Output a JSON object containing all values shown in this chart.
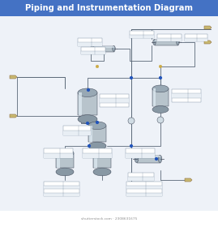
{
  "title": "Piping and Instrumentation Diagram",
  "title_bg": "#4472C4",
  "title_color": "#FFFFFF",
  "title_fontsize": 7.2,
  "bg_color": "#FFFFFF",
  "diagram_bg": "#EEF2F8",
  "vessel_color_body": "#B8C4CC",
  "vessel_color_cap": "#98A8B4",
  "vessel_highlight": "#DCE8F0",
  "vessel_shadow": "#8898A4",
  "pipe_color": "#5A6878",
  "line_color": "#404858",
  "label_box_bg": "#FFFFFF",
  "label_box_border": "#8899AA",
  "label_row_alt": "#EEF2F8",
  "connector_color": "#C8B870",
  "connector_border": "#907040",
  "blue_dot": "#2255BB",
  "gold_dot": "#CCAA44",
  "watermark_color": "#909090",
  "instrument_circle": "#D0DCE4"
}
